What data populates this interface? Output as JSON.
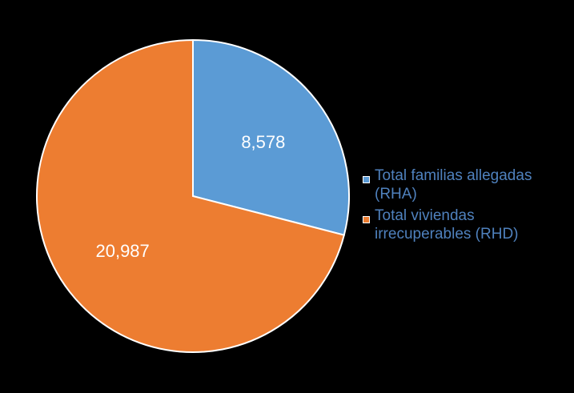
{
  "chart_data": {
    "type": "pie",
    "title": "",
    "slices": [
      {
        "label": "Total familias allegadas (RHA)",
        "value": 8578,
        "value_label": "8,578",
        "color": "#5b9bd5"
      },
      {
        "label": "Total viviendas irrecuperables (RHD)",
        "value": 20987,
        "value_label": "20,987",
        "color": "#ed7d31"
      }
    ],
    "legend": {
      "placement": "right",
      "entries": [
        {
          "line1": "Total familias allegadas",
          "line2": "(RHA)"
        },
        {
          "line1": "Total viviendas",
          "line2": "irrecuperables (RHD)"
        }
      ]
    },
    "start_angle": "12 o'clock",
    "direction": "clockwise"
  }
}
